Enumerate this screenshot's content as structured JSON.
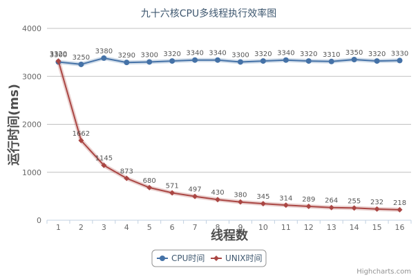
{
  "chart_data": {
    "type": "line",
    "title": "九十六核CPU多线程执行效率图",
    "xlabel": "线程数",
    "ylabel": "运行时间(ms)",
    "categories": [
      "1",
      "2",
      "3",
      "4",
      "5",
      "6",
      "7",
      "8",
      "9",
      "10",
      "11",
      "12",
      "13",
      "14",
      "15",
      "16"
    ],
    "ylim": [
      0,
      4000
    ],
    "yticks": [
      0,
      1000,
      2000,
      3000,
      4000
    ],
    "grid": true,
    "legend_position": "bottom-center",
    "series": [
      {
        "name": "CPU时间",
        "color": "#4572a7",
        "marker": "circle",
        "values": [
          3300,
          3250,
          3380,
          3290,
          3300,
          3320,
          3340,
          3340,
          3300,
          3320,
          3340,
          3320,
          3310,
          3350,
          3320,
          3330
        ]
      },
      {
        "name": "UNIX时间",
        "color": "#aa4643",
        "marker": "diamond",
        "values": [
          3320,
          1662,
          1145,
          873,
          680,
          571,
          497,
          430,
          380,
          345,
          314,
          289,
          264,
          255,
          232,
          218
        ]
      }
    ]
  },
  "credits": "Highcharts.com"
}
